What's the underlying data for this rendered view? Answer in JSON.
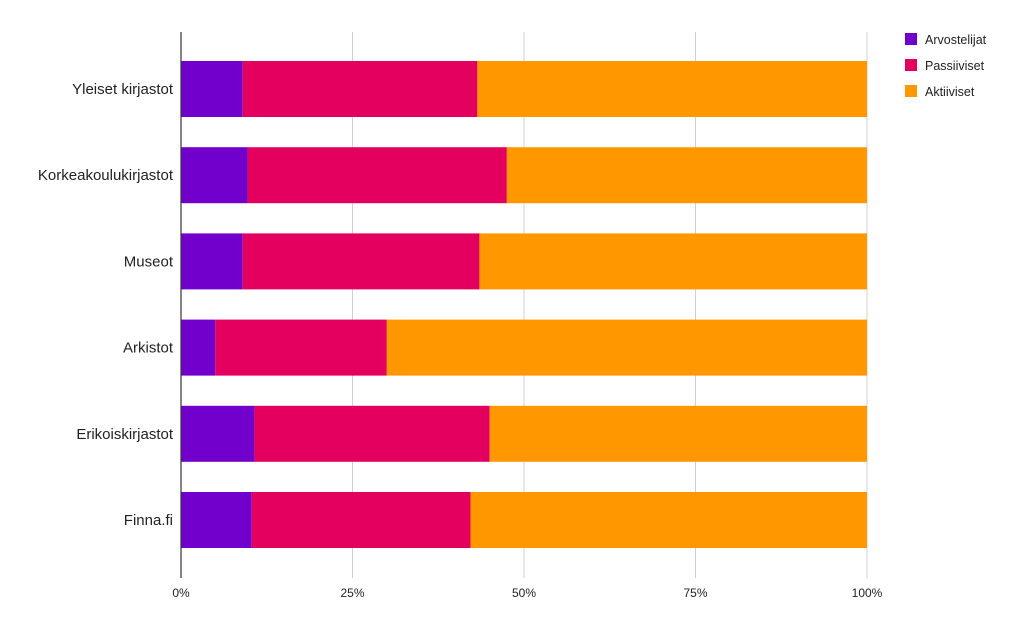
{
  "chart_data": {
    "type": "bar",
    "orientation": "horizontal",
    "stacked": "percent",
    "categories": [
      "Yleiset kirjastot",
      "Korkeakoulukirjastot",
      "Museot",
      "Arkistot",
      "Erikoiskirjastot",
      "Finna.fi"
    ],
    "series": [
      {
        "name": "Arvostelijat",
        "color": "#7100cc",
        "values": [
          9,
          9.7,
          9,
          5,
          10.7,
          10.3
        ]
      },
      {
        "name": "Passiiviset",
        "color": "#e4005f",
        "values": [
          34.2,
          37.8,
          34.5,
          25,
          34.3,
          31.9
        ]
      },
      {
        "name": "Aktiiviset",
        "color": "#ff9800",
        "values": [
          56.8,
          52.5,
          56.5,
          70,
          55,
          57.8
        ]
      }
    ],
    "x_ticks": [
      "0%",
      "25%",
      "50%",
      "75%",
      "100%"
    ],
    "xlim": [
      0,
      100
    ],
    "grid": true,
    "legend_position": "top-right",
    "title": "",
    "xlabel": "",
    "ylabel": ""
  }
}
